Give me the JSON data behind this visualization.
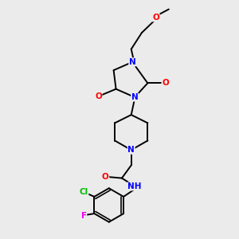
{
  "bg_color": "#ebebeb",
  "bond_color": "#000000",
  "bond_width": 1.4,
  "atom_colors": {
    "N": "#0000ff",
    "O": "#ff0000",
    "Cl": "#00bb00",
    "F": "#ee00ee",
    "C": "#000000",
    "H": "#000000"
  },
  "font_size": 7.5
}
